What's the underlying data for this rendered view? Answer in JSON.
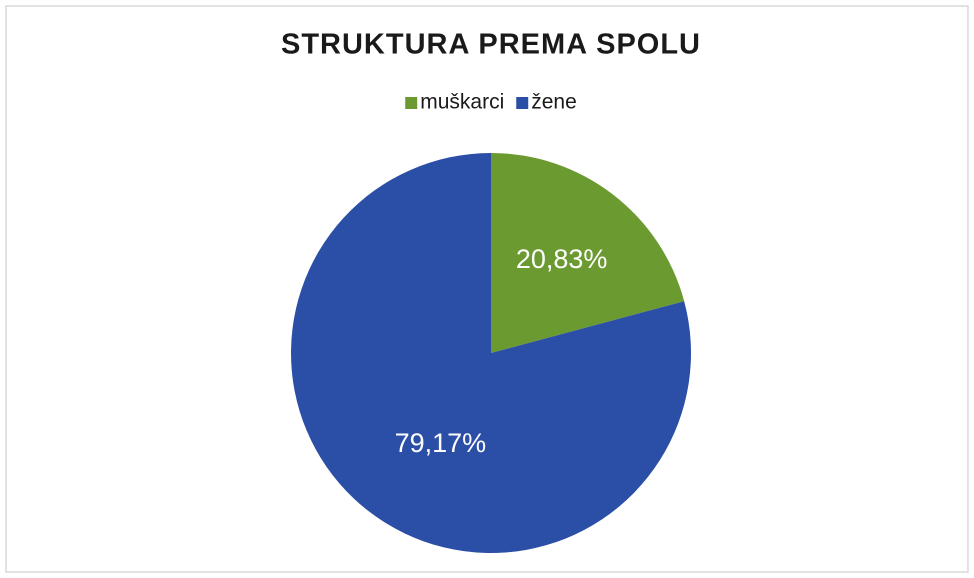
{
  "chart_data": {
    "type": "pie",
    "title": "STRUKTURA PREMA SPOLU",
    "categories": [
      "muškarci",
      "žene"
    ],
    "values": [
      20.83,
      79.17
    ],
    "value_labels": [
      "20,83%",
      "79,17%"
    ],
    "colors": [
      "#6b9a30",
      "#2b4fa6"
    ],
    "legend": "top"
  }
}
